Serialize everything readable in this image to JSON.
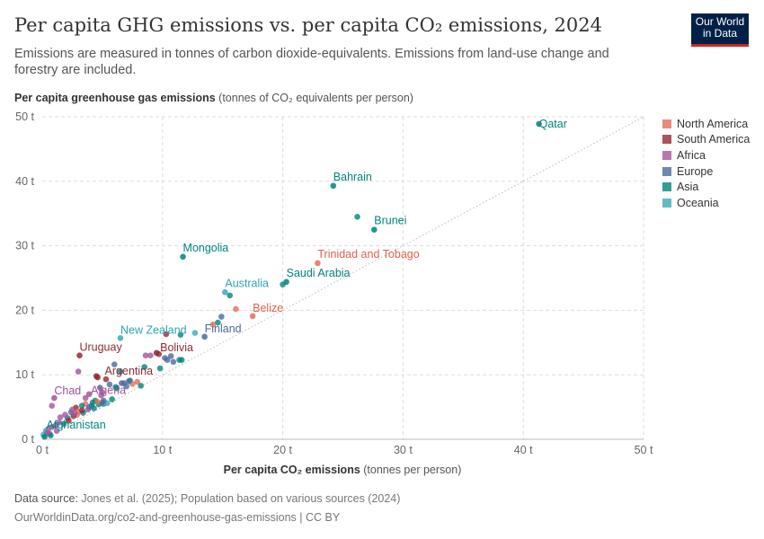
{
  "title": "Per capita GHG emissions vs. per capita CO₂ emissions, 2024",
  "subtitle": "Emissions are measured in tonnes of carbon dioxide-equivalents. Emissions from land-use change and forestry are included.",
  "logo": {
    "line1": "Our World",
    "line2": "in Data"
  },
  "footer": {
    "source_label": "Data source:",
    "source": " Jones et al. (2025); Population based on various sources (2024)",
    "url": "OurWorldinData.org/co2-and-greenhouse-gas-emissions | CC BY"
  },
  "chart_data": {
    "type": "scatter",
    "ylabel_bold": "Per capita greenhouse gas emissions",
    "ylabel_rest": " (tonnes of CO₂ equivalents per person)",
    "xlabel_bold": "Per capita CO₂ emissions",
    "xlabel_rest": " (tonnes per person)",
    "xlim": [
      0,
      50
    ],
    "ylim": [
      0,
      50
    ],
    "xticks": [
      "0 t",
      "10 t",
      "20 t",
      "30 t",
      "40 t",
      "50 t"
    ],
    "yticks": [
      "0 t",
      "10 t",
      "20 t",
      "30 t",
      "40 t",
      "50 t"
    ],
    "tick_values": [
      0,
      10,
      20,
      30,
      40,
      50
    ],
    "grid": true,
    "reference_line": "y = x (dotted)",
    "legend_position": "right",
    "regions": [
      {
        "name": "North America",
        "color": "#e56e5a",
        "label_color": "#e0614e"
      },
      {
        "name": "South America",
        "color": "#932834",
        "label_color": "#8f2a35"
      },
      {
        "name": "Africa",
        "color": "#a2559c",
        "label_color": "#a4509c"
      },
      {
        "name": "Europe",
        "color": "#4c6a9c",
        "label_color": "#4c6a9c"
      },
      {
        "name": "Asia",
        "color": "#00847e",
        "label_color": "#00847e"
      },
      {
        "name": "Oceania",
        "color": "#38aaba",
        "label_color": "#2ea2b3"
      }
    ],
    "labeled_points": [
      {
        "name": "Qatar",
        "x": 41.3,
        "y": 48.9,
        "region": 4
      },
      {
        "name": "Bahrain",
        "x": 24.2,
        "y": 39.3,
        "region": 4
      },
      {
        "name": "Brunei",
        "x": 27.6,
        "y": 32.5,
        "region": 4
      },
      {
        "name": "Mongolia",
        "x": 11.7,
        "y": 28.3,
        "region": 4
      },
      {
        "name": "Trinidad and Tobago",
        "x": 22.9,
        "y": 27.3,
        "region": 0
      },
      {
        "name": "Saudi Arabia",
        "x": 20.3,
        "y": 24.4,
        "region": 4
      },
      {
        "name": "Australia",
        "x": 15.2,
        "y": 22.8,
        "region": 5
      },
      {
        "name": "Belize",
        "x": 17.5,
        "y": 19.1,
        "region": 0
      },
      {
        "name": "New Zealand",
        "x": 6.5,
        "y": 15.7,
        "region": 5
      },
      {
        "name": "Finland",
        "x": 13.5,
        "y": 15.9,
        "region": 3
      },
      {
        "name": "Uruguay",
        "x": 3.1,
        "y": 13.0,
        "region": 1
      },
      {
        "name": "Bolivia",
        "x": 9.5,
        "y": 13.4,
        "region": 1
      },
      {
        "name": "Argentina",
        "x": 4.6,
        "y": 9.6,
        "region": 1
      },
      {
        "name": "Chad",
        "x": 1.0,
        "y": 6.4,
        "region": 2
      },
      {
        "name": "Algeria",
        "x": 3.9,
        "y": 7.0,
        "region": 2
      },
      {
        "name": "Afghanistan",
        "x": 0.2,
        "y": 0.4,
        "region": 4
      }
    ],
    "points": [
      [
        26.2,
        34.5,
        4
      ],
      [
        20.0,
        24.0,
        4
      ],
      [
        15.6,
        22.3,
        4
      ],
      [
        16.1,
        20.2,
        0
      ],
      [
        14.9,
        19.0,
        3
      ],
      [
        14.6,
        18.1,
        4
      ],
      [
        14.2,
        17.8,
        0
      ],
      [
        11.5,
        16.2,
        4
      ],
      [
        12.7,
        16.5,
        5
      ],
      [
        10.3,
        16.3,
        1
      ],
      [
        9.0,
        13.0,
        2
      ],
      [
        8.6,
        13.0,
        2
      ],
      [
        9.7,
        13.2,
        1
      ],
      [
        10.2,
        12.6,
        3
      ],
      [
        10.7,
        12.9,
        3
      ],
      [
        10.4,
        12.3,
        3
      ],
      [
        11.4,
        12.3,
        4
      ],
      [
        11.6,
        12.3,
        4
      ],
      [
        10.9,
        12.0,
        3
      ],
      [
        9.8,
        11.0,
        4
      ],
      [
        6.0,
        11.6,
        3
      ],
      [
        8.5,
        11.2,
        4
      ],
      [
        6.5,
        10.5,
        4
      ],
      [
        3.0,
        10.5,
        2
      ],
      [
        4.5,
        9.8,
        1
      ],
      [
        5.3,
        9.3,
        1
      ],
      [
        7.3,
        9.1,
        4
      ],
      [
        7.9,
        8.9,
        0
      ],
      [
        7.5,
        8.6,
        0
      ],
      [
        6.8,
        8.7,
        3
      ],
      [
        7.0,
        8.2,
        3
      ],
      [
        6.1,
        8.1,
        4
      ],
      [
        8.2,
        8.3,
        4
      ],
      [
        5.6,
        8.5,
        3
      ],
      [
        4.8,
        8.0,
        3
      ],
      [
        5.0,
        7.3,
        2
      ],
      [
        3.6,
        6.4,
        2
      ],
      [
        4.4,
        6.0,
        4
      ],
      [
        5.0,
        5.7,
        3
      ],
      [
        4.2,
        5.7,
        4
      ],
      [
        3.6,
        5.5,
        0
      ],
      [
        3.3,
        5.2,
        4
      ],
      [
        2.8,
        4.9,
        1
      ],
      [
        2.4,
        4.2,
        3
      ],
      [
        3.8,
        4.6,
        2
      ],
      [
        4.1,
        5.2,
        4
      ],
      [
        4.7,
        5.4,
        4
      ],
      [
        5.1,
        5.5,
        3
      ],
      [
        5.4,
        5.6,
        5
      ],
      [
        2.9,
        3.8,
        0
      ],
      [
        2.6,
        3.6,
        1
      ],
      [
        2.1,
        3.3,
        4
      ],
      [
        1.9,
        3.8,
        2
      ],
      [
        1.5,
        3.4,
        2
      ],
      [
        0.8,
        5.2,
        2
      ],
      [
        1.4,
        2.6,
        2
      ],
      [
        1.1,
        2.1,
        3
      ],
      [
        0.8,
        1.9,
        2
      ],
      [
        0.5,
        1.6,
        2
      ],
      [
        0.3,
        1.3,
        5
      ],
      [
        0.6,
        0.9,
        2
      ],
      [
        0.1,
        0.7,
        5
      ],
      [
        0.7,
        0.6,
        4
      ],
      [
        1.2,
        1.3,
        2
      ],
      [
        3.0,
        4.3,
        0
      ],
      [
        4.3,
        4.8,
        4
      ],
      [
        3.4,
        4.1,
        4
      ],
      [
        2.5,
        4.6,
        2
      ],
      [
        2.2,
        2.9,
        1
      ],
      [
        5.8,
        6.2,
        4
      ],
      [
        6.2,
        7.9,
        4
      ],
      [
        4.9,
        6.8,
        2
      ],
      [
        3.9,
        5.0,
        3
      ],
      [
        1.8,
        2.4,
        4
      ],
      [
        0.4,
        1.0,
        2
      ],
      [
        6.6,
        8.7,
        3
      ],
      [
        7.2,
        9.0,
        3
      ],
      [
        3.3,
        4.5,
        1
      ],
      [
        2.7,
        4.0,
        2
      ],
      [
        4.6,
        5.8,
        0
      ],
      [
        5.1,
        6.0,
        3
      ]
    ]
  }
}
